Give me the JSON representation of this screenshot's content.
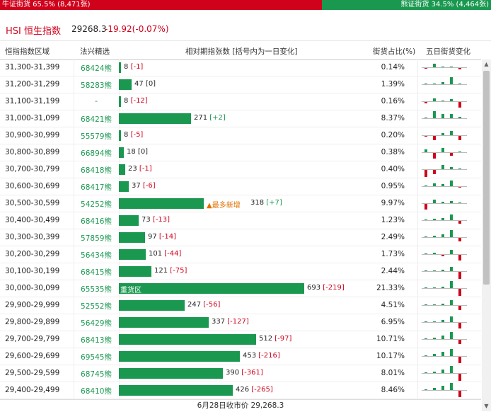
{
  "ratio": {
    "bull_label": "牛证街货 65.5% (8,471张)",
    "bear_label": "熊证街货 34.5% (4,464张)",
    "bull_pct": 65.5,
    "bear_pct": 34.5,
    "bull_color": "#d0021b",
    "bear_color": "#1a9850"
  },
  "index": {
    "name": "HSI 恒生指数",
    "price": "29268.3",
    "change": "-19.92(-0.07%)"
  },
  "columns": {
    "range": "恒指指数区域",
    "warrant": "法兴精选",
    "relative": "相对期指张数 [括号内为一日变化]",
    "pct": "街货占比(%)",
    "trend": "五日街货变化"
  },
  "rows": [
    {
      "range": "31,300-31,399",
      "warrant": "68424熊",
      "count": "8",
      "change": "[-1]",
      "pct": "0.14%",
      "value": 8,
      "trend": [
        -0.1,
        0.5,
        0.1,
        0,
        -0.2
      ]
    },
    {
      "range": "31,200-31,299",
      "warrant": "58283熊",
      "count": "47",
      "change": "[0]",
      "pct": "1.39%",
      "value": 47,
      "trend": [
        0.05,
        0.1,
        0.3,
        1,
        0.05
      ]
    },
    {
      "range": "31,100-31,199",
      "warrant": "-",
      "count": "8",
      "change": "[-12]",
      "pct": "0.16%",
      "value": 8,
      "trend": [
        -0.2,
        0.4,
        0.1,
        0.3,
        -0.8
      ]
    },
    {
      "range": "31,000-31,099",
      "warrant": "68421熊",
      "count": "271",
      "change": "[+2]",
      "pct": "8.37%",
      "value": 271,
      "trend": [
        0.05,
        1,
        0.6,
        0.6,
        0.2
      ]
    },
    {
      "range": "30,900-30,999",
      "warrant": "55579熊",
      "count": "8",
      "change": "[-5]",
      "pct": "0.20%",
      "value": 8,
      "trend": [
        -0.1,
        -0.6,
        0.3,
        0.6,
        -0.6
      ]
    },
    {
      "range": "30,800-30,899",
      "warrant": "66894熊",
      "count": "18",
      "change": "[0]",
      "pct": "0.38%",
      "value": 18,
      "trend": [
        0.4,
        -0.8,
        0.6,
        -0.4,
        0.05
      ]
    },
    {
      "range": "30,700-30,799",
      "warrant": "68418熊",
      "count": "23",
      "change": "[-1]",
      "pct": "0.40%",
      "value": 23,
      "trend": [
        -1,
        -0.6,
        0.6,
        0.3,
        0.05
      ]
    },
    {
      "range": "30,600-30,699",
      "warrant": "68417熊",
      "count": "37",
      "change": "[-6]",
      "pct": "0.95%",
      "value": 37,
      "trend": [
        0.1,
        0.4,
        0.3,
        0.8,
        -0.1
      ]
    },
    {
      "range": "30,500-30,599",
      "warrant": "54252熊",
      "count": "318",
      "change": "[+7]",
      "pct": "9.97%",
      "value": 318,
      "badge": "▲最多新增",
      "trend": [
        -0.8,
        0.5,
        0.2,
        0.3,
        0.05
      ]
    },
    {
      "range": "30,400-30,499",
      "warrant": "68416熊",
      "count": "73",
      "change": "[-13]",
      "pct": "1.23%",
      "value": 73,
      "trend": [
        0.1,
        0.2,
        0.3,
        0.8,
        -0.4
      ]
    },
    {
      "range": "30,300-30,399",
      "warrant": "57859熊",
      "count": "97",
      "change": "[-14]",
      "pct": "2.49%",
      "value": 97,
      "trend": [
        0.1,
        0.2,
        0.4,
        1,
        -0.5
      ]
    },
    {
      "range": "30,200-30,299",
      "warrant": "56434熊",
      "count": "101",
      "change": "[-44]",
      "pct": "1.73%",
      "value": 101,
      "trend": [
        0.1,
        0.2,
        -0.2,
        0.6,
        -0.8
      ]
    },
    {
      "range": "30,100-30,199",
      "warrant": "68415熊",
      "count": "121",
      "change": "[-75]",
      "pct": "2.44%",
      "value": 121,
      "trend": [
        0.1,
        0.1,
        0.2,
        0.6,
        -1
      ]
    },
    {
      "range": "30,000-30,099",
      "warrant": "65535熊",
      "count": "693",
      "change": "[-219]",
      "pct": "21.33%",
      "value": 693,
      "bar_label": "重货区",
      "trend": [
        0.1,
        0.1,
        0.2,
        1,
        -1
      ]
    },
    {
      "range": "29,900-29,999",
      "warrant": "52552熊",
      "count": "247",
      "change": "[-56]",
      "pct": "4.51%",
      "value": 247,
      "trend": [
        0.1,
        0.1,
        0.2,
        0.7,
        -0.6
      ]
    },
    {
      "range": "29,800-29,899",
      "warrant": "56429熊",
      "count": "337",
      "change": "[-127]",
      "pct": "6.95%",
      "value": 337,
      "trend": [
        0.1,
        0.1,
        0.3,
        0.8,
        -0.8
      ]
    },
    {
      "range": "29,700-29,799",
      "warrant": "68413熊",
      "count": "512",
      "change": "[-97]",
      "pct": "10.71%",
      "value": 512,
      "trend": [
        0.1,
        0.2,
        0.5,
        1,
        -0.6
      ]
    },
    {
      "range": "29,600-29,699",
      "warrant": "69545熊",
      "count": "453",
      "change": "[-216]",
      "pct": "10.17%",
      "value": 453,
      "trend": [
        0.1,
        0.3,
        0.6,
        1,
        -0.9
      ]
    },
    {
      "range": "29,500-29,599",
      "warrant": "68745熊",
      "count": "390",
      "change": "[-361]",
      "pct": "8.01%",
      "value": 390,
      "trend": [
        0.1,
        0.2,
        0.5,
        1,
        -1
      ]
    },
    {
      "range": "29,400-29,499",
      "warrant": "68410熊",
      "count": "426",
      "change": "[-265]",
      "pct": "8.46%",
      "value": 426,
      "trend": [
        0.1,
        0.3,
        0.6,
        1,
        -0.9
      ]
    }
  ],
  "footer": "6月28日收市价 29,268.3"
}
